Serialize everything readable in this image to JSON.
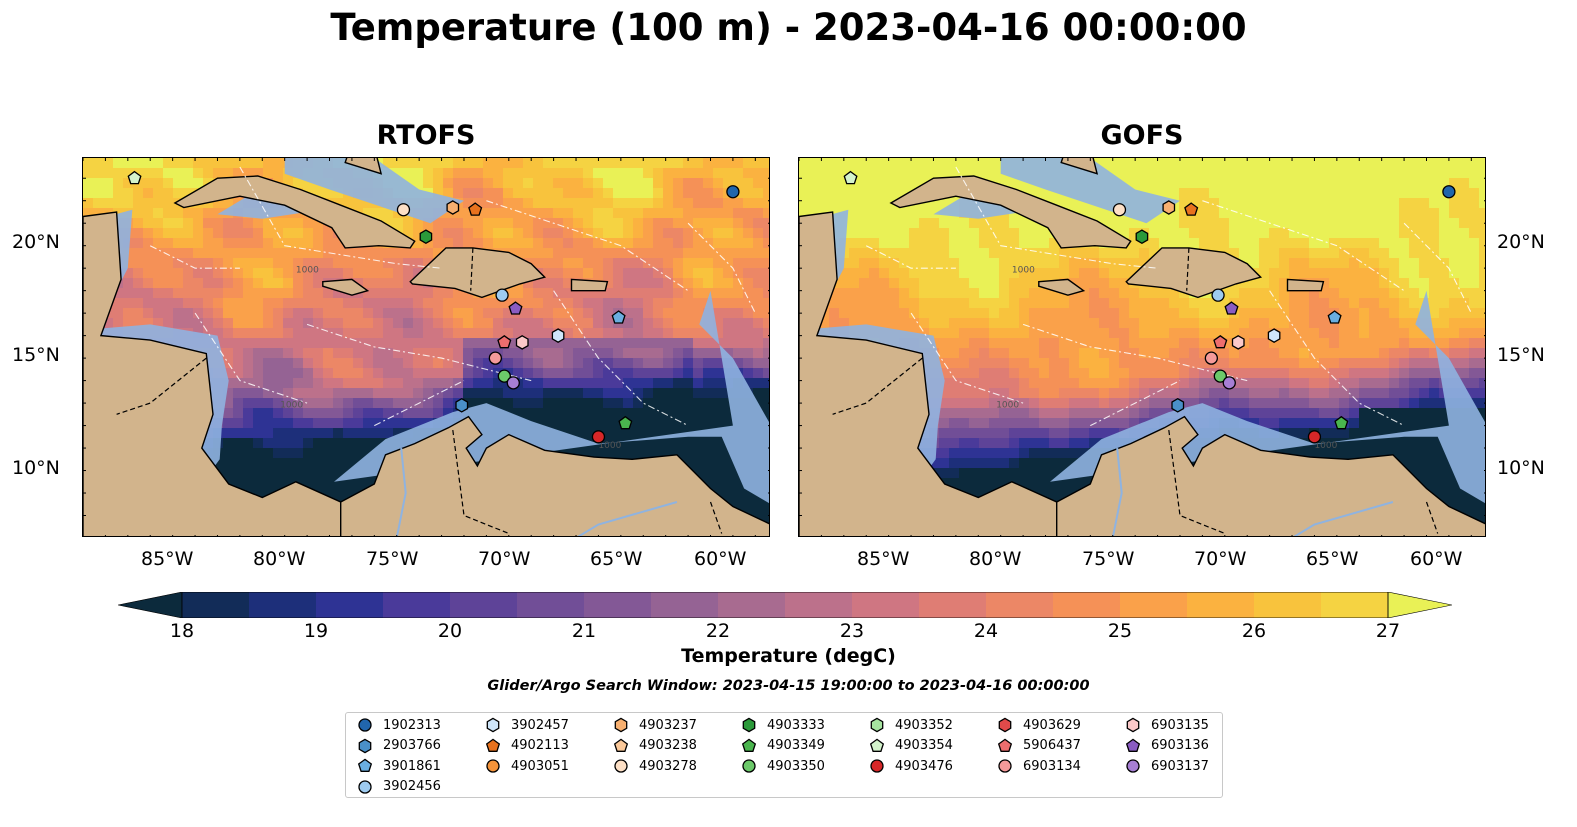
{
  "title": "Temperature (100 m) - 2023-04-16 00:00:00",
  "panels": [
    {
      "title": "RTOFS",
      "key": "rtofs"
    },
    {
      "title": "GOFS",
      "key": "gofs"
    }
  ],
  "lon_ticks": [
    "85°W",
    "80°W",
    "75°W",
    "70°W",
    "65°W",
    "60°W"
  ],
  "lat_ticks": [
    "20°N",
    "15°N",
    "10°N"
  ],
  "extent": {
    "lon": [
      -89,
      -58.3
    ],
    "lat": [
      7,
      23.9
    ]
  },
  "colorbar": {
    "label": "Temperature (degC)",
    "min": 18,
    "max": 27,
    "step": 0.5,
    "ticks": [
      "18",
      "19",
      "20",
      "21",
      "22",
      "23",
      "24",
      "25",
      "26",
      "27"
    ],
    "extend": "both",
    "colormap": "thermal",
    "colors": [
      "#0c2a3c",
      "#122c58",
      "#1d2f7a",
      "#2e3394",
      "#4a3a9a",
      "#5e4398",
      "#714e97",
      "#835896",
      "#956394",
      "#a86b90",
      "#bc718b",
      "#cf7682",
      "#df7d74",
      "#ec8766",
      "#f59157",
      "#faa14a",
      "#fbb240",
      "#f8c33d",
      "#f5d342",
      "#e9f156"
    ]
  },
  "search_window": "Glider/Argo Search Window: 2023-04-15 19:00:00 to 2023-04-16 00:00:00",
  "contour_label": "1000",
  "legend": [
    {
      "id": "1902313",
      "shape": "circle",
      "color": "#2166ac"
    },
    {
      "id": "2903766",
      "shape": "hexagon",
      "color": "#4a90c8"
    },
    {
      "id": "3901861",
      "shape": "pentagon",
      "color": "#6aaee0"
    },
    {
      "id": "3902456",
      "shape": "circle",
      "color": "#9ecbf0"
    },
    {
      "id": "3902457",
      "shape": "hexagon",
      "color": "#cfe6fa"
    },
    {
      "id": "4902113",
      "shape": "pentagon",
      "color": "#e8721e"
    },
    {
      "id": "4903051",
      "shape": "circle",
      "color": "#f5943a"
    },
    {
      "id": "4903237",
      "shape": "hexagon",
      "color": "#f8b070"
    },
    {
      "id": "4903238",
      "shape": "pentagon",
      "color": "#fbc99a"
    },
    {
      "id": "4903278",
      "shape": "circle",
      "color": "#fde0c6"
    },
    {
      "id": "4903333",
      "shape": "hexagon",
      "color": "#2b9a3a"
    },
    {
      "id": "4903349",
      "shape": "pentagon",
      "color": "#4ab54e"
    },
    {
      "id": "4903350",
      "shape": "circle",
      "color": "#6cc96a"
    },
    {
      "id": "4903352",
      "shape": "hexagon",
      "color": "#a6e3a0"
    },
    {
      "id": "4903354",
      "shape": "pentagon",
      "color": "#d4f3cc"
    },
    {
      "id": "4903476",
      "shape": "circle",
      "color": "#d62728"
    },
    {
      "id": "4903629",
      "shape": "hexagon",
      "color": "#e14a4a"
    },
    {
      "id": "5906437",
      "shape": "pentagon",
      "color": "#ee6e6e"
    },
    {
      "id": "6903134",
      "shape": "circle",
      "color": "#f59a9a"
    },
    {
      "id": "6903135",
      "shape": "hexagon",
      "color": "#fbc9c9"
    },
    {
      "id": "6903136",
      "shape": "pentagon",
      "color": "#8a5cc2"
    },
    {
      "id": "6903137",
      "shape": "circle",
      "color": "#a77fd4"
    }
  ],
  "platforms": [
    {
      "id": "1902313",
      "lon": -60.0,
      "lat": 22.4
    },
    {
      "id": "4903354",
      "lon": -86.7,
      "lat": 23.0
    },
    {
      "id": "4903278",
      "lon": -74.7,
      "lat": 21.6
    },
    {
      "id": "4903237",
      "lon": -72.5,
      "lat": 21.7
    },
    {
      "id": "4902113",
      "lon": -71.5,
      "lat": 21.6
    },
    {
      "id": "4903333",
      "lon": -73.7,
      "lat": 20.4
    },
    {
      "id": "3902456",
      "lon": -70.3,
      "lat": 17.8
    },
    {
      "id": "6903136",
      "lon": -69.7,
      "lat": 17.2
    },
    {
      "id": "3901861",
      "lon": -65.1,
      "lat": 16.8
    },
    {
      "id": "3902457",
      "lon": -67.8,
      "lat": 16.0
    },
    {
      "id": "5906437",
      "lon": -70.2,
      "lat": 15.7
    },
    {
      "id": "6903135",
      "lon": -69.4,
      "lat": 15.7
    },
    {
      "id": "6903134",
      "lon": -70.6,
      "lat": 15.0
    },
    {
      "id": "4903350",
      "lon": -70.2,
      "lat": 14.2
    },
    {
      "id": "6903137",
      "lon": -69.8,
      "lat": 13.9
    },
    {
      "id": "2903766",
      "lon": -72.1,
      "lat": 12.9
    },
    {
      "id": "4903349",
      "lon": -64.8,
      "lat": 12.1
    },
    {
      "id": "4903476",
      "lon": -66.0,
      "lat": 11.5
    }
  ]
}
